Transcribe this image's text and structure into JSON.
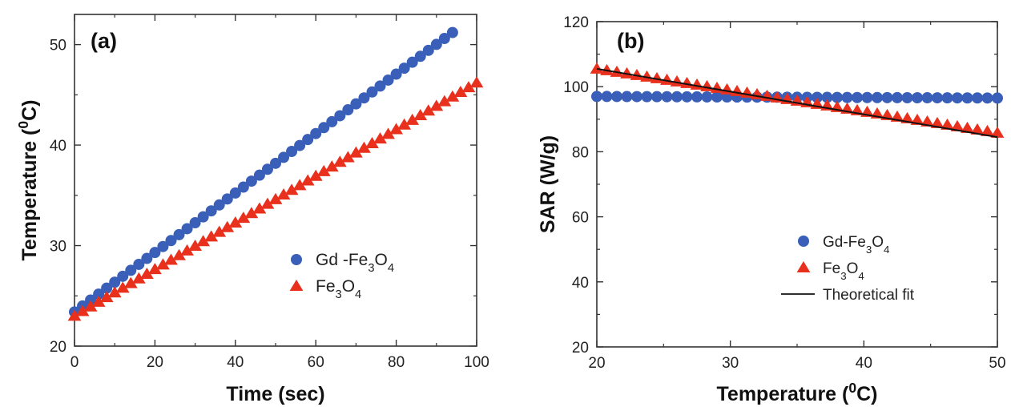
{
  "chart_data": [
    {
      "type": "scatter",
      "panel_label": "(a)",
      "xlabel": "Time (sec)",
      "ylabel": {
        "main": "Temperature (",
        "sup": "0",
        "tail": "C)"
      },
      "xlim": [
        0,
        100
      ],
      "ylim": [
        20,
        53
      ],
      "xticks": [
        0,
        20,
        40,
        60,
        80,
        100
      ],
      "yticks": [
        20,
        30,
        40,
        50
      ],
      "legend_position": "lower-right",
      "series": [
        {
          "name": "Gd -Fe3O4",
          "name_parts": [
            [
              "Gd -Fe",
              "n"
            ],
            [
              "3",
              "sub"
            ],
            [
              "O",
              "n"
            ],
            [
              "4",
              "sub"
            ]
          ],
          "marker": "circle",
          "color": "#3a5fb8",
          "x_start": 0,
          "x_end": 94,
          "x_step": 2,
          "y_start": 23.4,
          "y_end": 51.2
        },
        {
          "name": "Fe3O4",
          "name_parts": [
            [
              "Fe",
              "n"
            ],
            [
              "3",
              "sub"
            ],
            [
              "O",
              "n"
            ],
            [
              "4",
              "sub"
            ]
          ],
          "marker": "triangle",
          "color": "#e8301d",
          "x_start": 0,
          "x_end": 100,
          "x_step": 2,
          "y_start": 23.0,
          "y_end": 46.2
        }
      ]
    },
    {
      "type": "scatter",
      "panel_label": "(b)",
      "xlabel": {
        "main": "Temperature (",
        "sup": "0",
        "tail": "C)"
      },
      "ylabel": "SAR (W/g)",
      "xlim": [
        20,
        50
      ],
      "ylim": [
        20,
        120
      ],
      "xticks": [
        20,
        30,
        40,
        50
      ],
      "yticks": [
        20,
        40,
        60,
        80,
        100,
        120
      ],
      "legend_position": "lower-right",
      "series": [
        {
          "name": "Gd-Fe3O4",
          "name_parts": [
            [
              "Gd-Fe",
              "n"
            ],
            [
              "3",
              "sub"
            ],
            [
              "O",
              "n"
            ],
            [
              "4",
              "sub"
            ]
          ],
          "marker": "circle",
          "color": "#3a5fb8",
          "x_start": 20,
          "x_end": 50,
          "x_step": 0.75,
          "y_start": 97.0,
          "y_end": 96.5
        },
        {
          "name": "Fe3O4",
          "name_parts": [
            [
              "Fe",
              "n"
            ],
            [
              "3",
              "sub"
            ],
            [
              "O",
              "n"
            ],
            [
              "4",
              "sub"
            ]
          ],
          "marker": "triangle",
          "color": "#e8301d",
          "x_start": 20,
          "x_end": 50,
          "x_step": 0.75,
          "y_start": 105.5,
          "y_end": 85.8
        },
        {
          "name": "Theoretical fit",
          "name_parts": [
            [
              "Theoretical fit",
              "n"
            ]
          ],
          "marker": "line",
          "color": "#111111",
          "x": [
            20,
            50
          ],
          "y": [
            105.5,
            84.5
          ]
        }
      ]
    }
  ]
}
